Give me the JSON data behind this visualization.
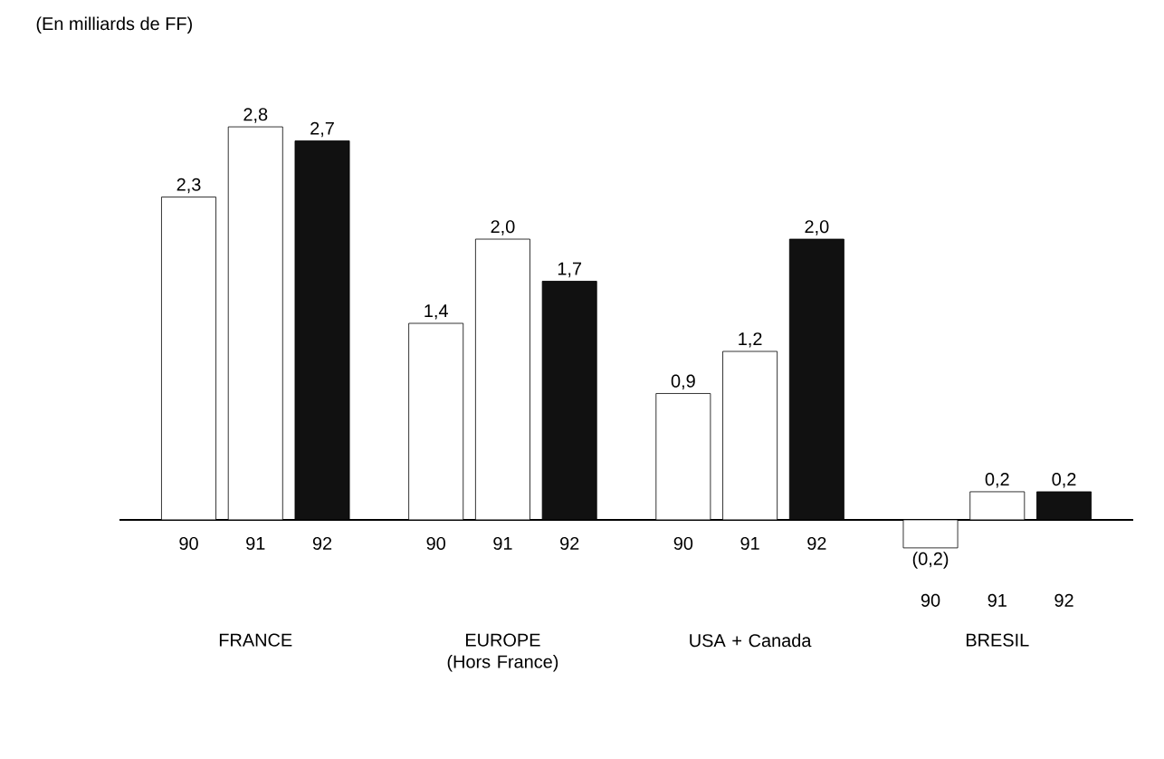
{
  "chart_data": {
    "type": "bar",
    "annotations": [
      "(En milliards de FF)"
    ],
    "categories": [
      "FRANCE",
      "EUROPE (Hors France)",
      "USA + Canada",
      "BRESIL"
    ],
    "series": [
      {
        "name": "90",
        "color": "#ffffff",
        "values": [
          2.3,
          1.4,
          0.9,
          -0.2
        ],
        "value_labels": [
          "2,3",
          "1,4",
          "0,9",
          "(0,2)"
        ]
      },
      {
        "name": "91",
        "color": "#ffffff",
        "values": [
          2.8,
          2.0,
          1.2,
          0.2
        ],
        "value_labels": [
          "2,8",
          "2,0",
          "1,2",
          "0,2"
        ]
      },
      {
        "name": "92",
        "color": "#111111",
        "values": [
          2.7,
          1.7,
          2.0,
          0.2
        ],
        "value_labels": [
          "2,7",
          "1,7",
          "2,0",
          "0,2"
        ]
      }
    ]
  }
}
